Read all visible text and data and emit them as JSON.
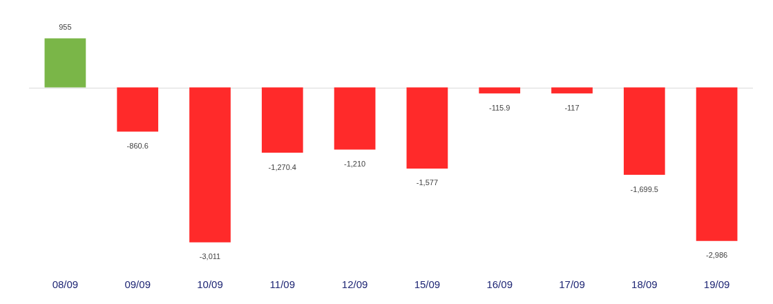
{
  "chart_data": {
    "type": "bar",
    "categories": [
      "08/09",
      "09/09",
      "10/09",
      "11/09",
      "12/09",
      "15/09",
      "16/09",
      "17/09",
      "18/09",
      "19/09"
    ],
    "values": [
      955,
      -860.6,
      -3011,
      -1270.4,
      -1210,
      -1577,
      -115.9,
      -117,
      -1699.5,
      -2986
    ],
    "colors": [
      "#7ab648",
      "#ff2a2a",
      "#ff2a2a",
      "#ff2a2a",
      "#ff2a2a",
      "#ff2a2a",
      "#ff2a2a",
      "#ff2a2a",
      "#ff2a2a",
      "#ff2a2a"
    ],
    "value_labels": [
      "955",
      "-860.6",
      "-3,011",
      "-1,270.4",
      "-1,210",
      "-1,577",
      "-115.9",
      "-117",
      "-1,699.5",
      "-2,986"
    ],
    "grid": false,
    "legend": false
  }
}
